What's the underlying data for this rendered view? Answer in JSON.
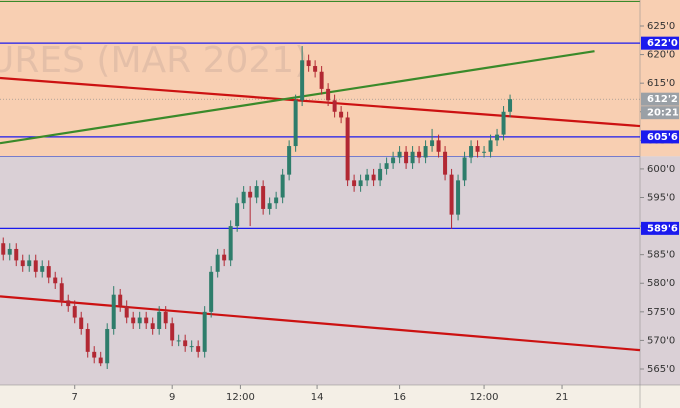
{
  "chart_data": {
    "type": "candlestick",
    "watermark": "URES (MAR 2021)",
    "open": [
      587,
      585,
      586,
      584,
      583,
      584,
      582,
      583,
      581,
      580,
      577,
      576,
      574,
      572,
      568,
      567,
      566,
      572,
      578,
      576,
      574,
      573,
      574,
      573,
      572,
      575,
      573,
      570,
      570,
      569,
      569,
      568,
      575,
      582,
      585,
      584,
      590,
      594,
      596,
      595,
      597,
      593,
      594,
      595,
      599,
      604,
      612,
      619,
      618,
      617,
      614,
      612,
      610,
      609,
      598,
      597,
      598,
      599,
      598,
      600,
      601,
      602,
      603,
      601,
      603,
      602,
      604,
      605,
      603,
      599,
      592,
      598,
      602,
      604,
      603,
      603,
      605,
      606,
      610
    ],
    "high": [
      588,
      587,
      587,
      585,
      585,
      585,
      584,
      584,
      582,
      581,
      578,
      577,
      575,
      573,
      569,
      568,
      573,
      579.5,
      579,
      577,
      575,
      575,
      575,
      574,
      576,
      576,
      574,
      571,
      571,
      570,
      570,
      576,
      583,
      586,
      586,
      591,
      595,
      597,
      597,
      598,
      598,
      595,
      596,
      600,
      605,
      613,
      621.5,
      620,
      619,
      618,
      615,
      613,
      611,
      610,
      599,
      599,
      600,
      600,
      601,
      602,
      603,
      604,
      604,
      604,
      604,
      605,
      607,
      606,
      604,
      600,
      599,
      603,
      605,
      605,
      604,
      606,
      607,
      611,
      613
    ],
    "low": [
      584,
      584,
      583,
      582,
      582,
      581,
      581,
      580,
      579,
      576,
      575,
      573,
      571,
      567,
      566,
      565.5,
      565,
      571,
      575,
      573,
      572,
      572,
      572,
      571,
      571,
      572,
      569,
      569,
      568,
      568,
      567,
      567,
      574,
      581,
      583,
      583,
      589,
      593,
      590,
      594,
      592,
      592,
      593,
      594,
      598,
      603,
      611,
      617,
      616,
      613,
      611,
      609,
      608,
      597,
      596,
      596,
      597,
      597,
      597,
      599,
      600,
      601,
      600,
      600,
      601,
      601,
      603,
      602,
      598,
      589.5,
      591,
      597,
      601,
      602,
      602,
      602,
      604,
      605,
      609
    ],
    "close": [
      585,
      586,
      584,
      583,
      584,
      582,
      583,
      581,
      580,
      577,
      576,
      574,
      572,
      568,
      567,
      566,
      572,
      578,
      576,
      574,
      573,
      574,
      573,
      572,
      575,
      573,
      570,
      570,
      569,
      569,
      568,
      575,
      582,
      585,
      584,
      590,
      594,
      596,
      595,
      597,
      593,
      594,
      595,
      599,
      604,
      612,
      619,
      618,
      617,
      614,
      612,
      610,
      609,
      598,
      597,
      598,
      599,
      598,
      600,
      601,
      602,
      603,
      601,
      603,
      602,
      604,
      605,
      603,
      599,
      592,
      598,
      602,
      604,
      603,
      603,
      605,
      606,
      610,
      612.2
    ],
    "up_color": "#2e7d6b",
    "down_color": "#b22833",
    "xlim": [
      -0.5,
      98
    ],
    "xticks": [
      {
        "value": 11,
        "label": "7"
      },
      {
        "value": 26,
        "label": "9"
      },
      {
        "value": 36.5,
        "label": "12:00"
      },
      {
        "value": 48.3,
        "label": "14"
      },
      {
        "value": 61,
        "label": "16"
      },
      {
        "value": 74,
        "label": "12:00"
      },
      {
        "value": 86,
        "label": "21"
      }
    ],
    "ylim": [
      562.2,
      629.55
    ],
    "yticks": [
      {
        "value": 565,
        "label": "565'0"
      },
      {
        "value": 570,
        "label": "570'0"
      },
      {
        "value": 575,
        "label": "575'0"
      },
      {
        "value": 580,
        "label": "580'0"
      },
      {
        "value": 585,
        "label": "585'0"
      },
      {
        "value": 590,
        "label": "590'0"
      },
      {
        "value": 595,
        "label": "595'0"
      },
      {
        "value": 600,
        "label": "600'0"
      },
      {
        "value": 605,
        "label": "605'0"
      },
      {
        "value": 610,
        "label": "610'0"
      },
      {
        "value": 615,
        "label": "615'0"
      },
      {
        "value": 620,
        "label": "620'0"
      },
      {
        "value": 625,
        "label": "625'0"
      }
    ],
    "zone_split": 602.2,
    "zone_top_color": "#f8cfb2",
    "zone_bottom_color": "#dad0d6",
    "top_line": 629.3,
    "levels": [
      {
        "value": 622,
        "label": "622'0"
      },
      {
        "value": 605.6,
        "label": "605'6"
      },
      {
        "value": 589.6,
        "label": "589'6"
      }
    ],
    "level_color": "#1a1aee",
    "last_price": {
      "value": 612.2,
      "label": "612'2"
    },
    "timer": "20:21",
    "trendlines": [
      {
        "color": "#cc1111",
        "x": [
          -0.5,
          98
        ],
        "y": [
          615.9,
          607.5
        ]
      },
      {
        "color": "#cc1111",
        "x": [
          -0.5,
          98
        ],
        "y": [
          577.7,
          568.3
        ]
      },
      {
        "color": "#3a8a2a",
        "x": [
          -0.5,
          91
        ],
        "y": [
          604.5,
          620.6
        ]
      }
    ]
  }
}
